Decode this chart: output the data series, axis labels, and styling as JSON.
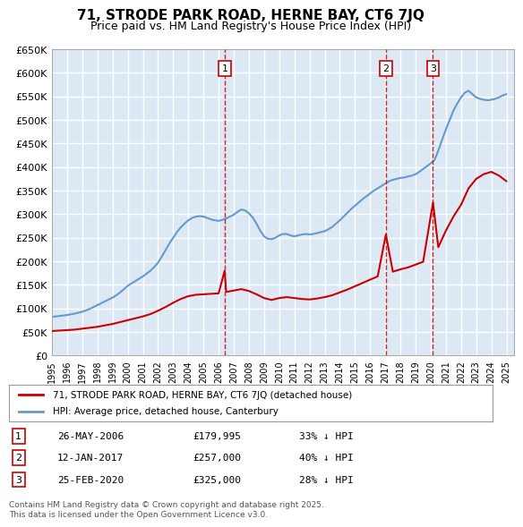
{
  "title": "71, STRODE PARK ROAD, HERNE BAY, CT6 7JQ",
  "subtitle": "Price paid vs. HM Land Registry's House Price Index (HPI)",
  "ylabel_ticks": [
    "£0",
    "£50K",
    "£100K",
    "£150K",
    "£200K",
    "£250K",
    "£300K",
    "£350K",
    "£400K",
    "£450K",
    "£500K",
    "£550K",
    "£600K",
    "£650K"
  ],
  "ylim": [
    0,
    650000
  ],
  "xlim_start": 1995.0,
  "xlim_end": 2025.5,
  "bg_color": "#dce9f5",
  "plot_bg_color": "#dce9f5",
  "grid_color": "#ffffff",
  "red_line_color": "#cc0000",
  "blue_line_color": "#6699cc",
  "transactions": [
    {
      "num": 1,
      "date": "26-MAY-2006",
      "price": 179995,
      "pct": "33%",
      "x": 2006.4
    },
    {
      "num": 2,
      "date": "12-JAN-2017",
      "price": 257000,
      "pct": "40%",
      "x": 2017.04
    },
    {
      "num": 3,
      "date": "25-FEB-2020",
      "price": 325000,
      "pct": "28%",
      "x": 2020.15
    }
  ],
  "legend_label_red": "71, STRODE PARK ROAD, HERNE BAY, CT6 7JQ (detached house)",
  "legend_label_blue": "HPI: Average price, detached house, Canterbury",
  "footnote": "Contains HM Land Registry data © Crown copyright and database right 2025.\nThis data is licensed under the Open Government Licence v3.0.",
  "hpi_x": [
    1995.0,
    1995.25,
    1995.5,
    1995.75,
    1996.0,
    1996.25,
    1996.5,
    1996.75,
    1997.0,
    1997.25,
    1997.5,
    1997.75,
    1998.0,
    1998.25,
    1998.5,
    1998.75,
    1999.0,
    1999.25,
    1999.5,
    1999.75,
    2000.0,
    2000.25,
    2000.5,
    2000.75,
    2001.0,
    2001.25,
    2001.5,
    2001.75,
    2002.0,
    2002.25,
    2002.5,
    2002.75,
    2003.0,
    2003.25,
    2003.5,
    2003.75,
    2004.0,
    2004.25,
    2004.5,
    2004.75,
    2005.0,
    2005.25,
    2005.5,
    2005.75,
    2006.0,
    2006.25,
    2006.5,
    2006.75,
    2007.0,
    2007.25,
    2007.5,
    2007.75,
    2008.0,
    2008.25,
    2008.5,
    2008.75,
    2009.0,
    2009.25,
    2009.5,
    2009.75,
    2010.0,
    2010.25,
    2010.5,
    2010.75,
    2011.0,
    2011.25,
    2011.5,
    2011.75,
    2012.0,
    2012.25,
    2012.5,
    2012.75,
    2013.0,
    2013.25,
    2013.5,
    2013.75,
    2014.0,
    2014.25,
    2014.5,
    2014.75,
    2015.0,
    2015.25,
    2015.5,
    2015.75,
    2016.0,
    2016.25,
    2016.5,
    2016.75,
    2017.0,
    2017.25,
    2017.5,
    2017.75,
    2018.0,
    2018.25,
    2018.5,
    2018.75,
    2019.0,
    2019.25,
    2019.5,
    2019.75,
    2020.0,
    2020.25,
    2020.5,
    2020.75,
    2021.0,
    2021.25,
    2021.5,
    2021.75,
    2022.0,
    2022.25,
    2022.5,
    2022.75,
    2023.0,
    2023.25,
    2023.5,
    2023.75,
    2024.0,
    2024.25,
    2024.5,
    2024.75,
    2025.0
  ],
  "hpi_y": [
    82000,
    83000,
    84000,
    85000,
    86000,
    87500,
    89000,
    91000,
    93000,
    96000,
    99000,
    103000,
    107000,
    111000,
    115000,
    119000,
    123000,
    128000,
    134000,
    141000,
    148000,
    153000,
    158000,
    163000,
    168000,
    174000,
    180000,
    188000,
    197000,
    210000,
    224000,
    238000,
    250000,
    262000,
    272000,
    280000,
    287000,
    292000,
    295000,
    296000,
    295000,
    292000,
    289000,
    287000,
    286000,
    288000,
    291000,
    295000,
    299000,
    305000,
    310000,
    308000,
    302000,
    293000,
    280000,
    265000,
    253000,
    248000,
    247000,
    250000,
    255000,
    258000,
    258000,
    255000,
    253000,
    255000,
    257000,
    258000,
    257000,
    258000,
    260000,
    262000,
    264000,
    268000,
    273000,
    280000,
    287000,
    295000,
    303000,
    311000,
    318000,
    325000,
    332000,
    338000,
    344000,
    350000,
    355000,
    360000,
    365000,
    370000,
    373000,
    375000,
    377000,
    378000,
    380000,
    382000,
    385000,
    390000,
    396000,
    402000,
    408000,
    415000,
    435000,
    458000,
    480000,
    500000,
    520000,
    535000,
    548000,
    558000,
    562000,
    555000,
    548000,
    545000,
    543000,
    542000,
    543000,
    545000,
    548000,
    552000,
    555000
  ],
  "red_x": [
    1995.0,
    1995.5,
    1996.0,
    1996.5,
    1997.0,
    1997.5,
    1998.0,
    1998.5,
    1999.0,
    1999.5,
    2000.0,
    2000.5,
    2001.0,
    2001.5,
    2002.0,
    2002.5,
    2003.0,
    2003.5,
    2004.0,
    2004.5,
    2005.0,
    2005.5,
    2006.0,
    2006.4,
    2006.5,
    2007.0,
    2007.5,
    2008.0,
    2008.5,
    2009.0,
    2009.5,
    2010.0,
    2010.5,
    2011.0,
    2011.5,
    2012.0,
    2012.5,
    2013.0,
    2013.5,
    2014.0,
    2014.5,
    2015.0,
    2015.5,
    2016.0,
    2016.5,
    2017.04,
    2017.5,
    2018.0,
    2018.5,
    2019.0,
    2019.5,
    2020.15,
    2020.5,
    2021.0,
    2021.5,
    2022.0,
    2022.5,
    2023.0,
    2023.5,
    2024.0,
    2024.5,
    2025.0
  ],
  "red_y": [
    52000,
    53000,
    54000,
    55000,
    57000,
    59000,
    61000,
    64000,
    67000,
    71000,
    75000,
    79000,
    83000,
    88000,
    95000,
    103000,
    112000,
    120000,
    126000,
    129000,
    130000,
    131000,
    132000,
    179995,
    135000,
    138000,
    141000,
    137000,
    130000,
    122000,
    118000,
    122000,
    124000,
    122000,
    120000,
    119000,
    121000,
    124000,
    128000,
    134000,
    140000,
    147000,
    154000,
    161000,
    168000,
    257000,
    178000,
    183000,
    187000,
    193000,
    199000,
    325000,
    230000,
    265000,
    295000,
    320000,
    355000,
    375000,
    385000,
    390000,
    382000,
    370000
  ]
}
